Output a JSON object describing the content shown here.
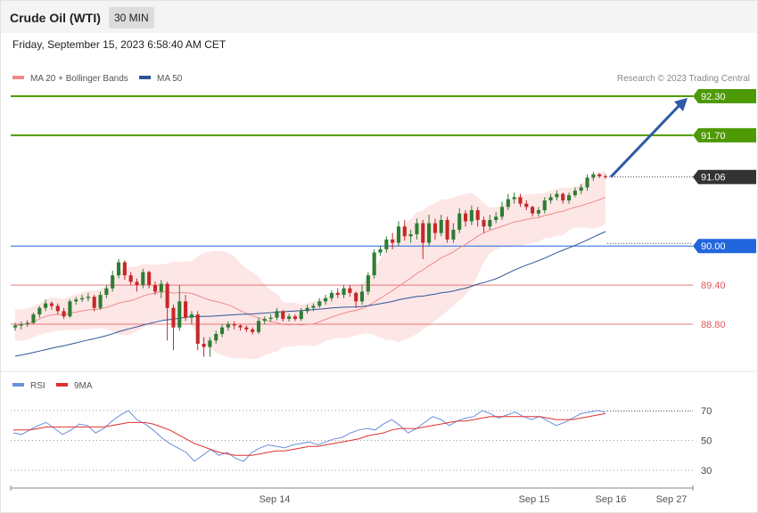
{
  "header": {
    "title": "Crude Oil (WTI)",
    "interval": "30 MIN"
  },
  "date_line": "Friday, September 15, 2023 6:58:40 AM CET",
  "legend": {
    "ma20": "MA 20 + Bollinger Bands",
    "ma50": "MA 50",
    "rsi": "RSI",
    "ma9": "9MA"
  },
  "copyright": "Research © 2023 Trading Central",
  "colors": {
    "green_level": "#4e9a06",
    "blue_level": "#2266dd",
    "red_level": "#e05a5a",
    "up": "#2e7d32",
    "down": "#c62828",
    "band": "#fde0e0",
    "ma50": "#2e5597",
    "rsi": "#6a8fdc",
    "ma9": "#e03030",
    "arrow": "#2e5aa8",
    "last": "#333333"
  },
  "chart_data": [
    {
      "type": "candlestick",
      "ylim": [
        87.8,
        92.5
      ],
      "x_ticks": [
        "Sep 14",
        "Sep 15",
        "Sep 16",
        "Sep 27"
      ],
      "levels": [
        {
          "value": 92.3,
          "label": "92.30",
          "kind": "resistance"
        },
        {
          "value": 91.7,
          "label": "91.70",
          "kind": "resistance"
        },
        {
          "value": 91.06,
          "label": "91.06",
          "kind": "last"
        },
        {
          "value": 90.0,
          "label": "90.00",
          "kind": "pivot"
        },
        {
          "value": 89.4,
          "label": "89.40",
          "kind": "support"
        },
        {
          "value": 88.8,
          "label": "88.80",
          "kind": "support"
        }
      ],
      "candles": [
        [
          88.75,
          88.78,
          88.7,
          88.82
        ],
        [
          88.78,
          88.8,
          88.72,
          88.84
        ],
        [
          88.8,
          88.82,
          88.76,
          88.86
        ],
        [
          88.82,
          88.95,
          88.8,
          88.98
        ],
        [
          88.95,
          89.05,
          88.9,
          89.08
        ],
        [
          89.05,
          89.12,
          89.0,
          89.18
        ],
        [
          89.12,
          89.08,
          89.02,
          89.15
        ],
        [
          89.08,
          89.0,
          88.95,
          89.12
        ],
        [
          89.0,
          88.92,
          88.88,
          89.05
        ],
        [
          88.92,
          89.15,
          88.9,
          89.18
        ],
        [
          89.15,
          89.18,
          89.1,
          89.22
        ],
        [
          89.18,
          89.2,
          89.14,
          89.25
        ],
        [
          89.2,
          89.22,
          89.15,
          89.28
        ],
        [
          89.22,
          89.05,
          89.0,
          89.25
        ],
        [
          89.05,
          89.25,
          89.02,
          89.3
        ],
        [
          89.25,
          89.35,
          89.2,
          89.4
        ],
        [
          89.35,
          89.55,
          89.3,
          89.62
        ],
        [
          89.55,
          89.75,
          89.5,
          89.8
        ],
        [
          89.75,
          89.55,
          89.48,
          89.78
        ],
        [
          89.55,
          89.45,
          89.4,
          89.6
        ],
        [
          89.45,
          89.4,
          89.3,
          89.5
        ],
        [
          89.4,
          89.6,
          89.35,
          89.65
        ],
        [
          89.6,
          89.4,
          89.35,
          89.62
        ],
        [
          89.4,
          89.3,
          89.25,
          89.45
        ],
        [
          89.3,
          89.42,
          89.2,
          89.48
        ],
        [
          89.42,
          89.05,
          88.55,
          89.45
        ],
        [
          89.05,
          88.75,
          88.4,
          89.1
        ],
        [
          88.75,
          89.15,
          88.7,
          89.4
        ],
        [
          89.15,
          88.9,
          88.85,
          89.25
        ],
        [
          88.9,
          88.95,
          88.8,
          89.0
        ],
        [
          88.95,
          88.5,
          88.4,
          89.0
        ],
        [
          88.5,
          88.45,
          88.3,
          88.6
        ],
        [
          88.45,
          88.55,
          88.3,
          88.6
        ],
        [
          88.55,
          88.65,
          88.5,
          88.7
        ],
        [
          88.65,
          88.75,
          88.6,
          88.8
        ],
        [
          88.75,
          88.8,
          88.7,
          88.84
        ],
        [
          88.8,
          88.78,
          88.72,
          88.84
        ],
        [
          88.78,
          88.75,
          88.7,
          88.8
        ],
        [
          88.75,
          88.72,
          88.68,
          88.78
        ],
        [
          88.72,
          88.68,
          88.64,
          88.75
        ],
        [
          88.68,
          88.85,
          88.65,
          88.9
        ],
        [
          88.85,
          88.88,
          88.8,
          88.92
        ],
        [
          88.88,
          88.9,
          88.84,
          88.95
        ],
        [
          88.9,
          89.0,
          88.86,
          89.05
        ],
        [
          89.0,
          88.88,
          88.84,
          89.02
        ],
        [
          88.88,
          88.92,
          88.84,
          88.96
        ],
        [
          88.92,
          88.88,
          88.85,
          88.95
        ],
        [
          88.88,
          89.0,
          88.85,
          89.05
        ],
        [
          89.0,
          89.05,
          88.96,
          89.1
        ],
        [
          89.05,
          89.08,
          89.0,
          89.12
        ],
        [
          89.08,
          89.15,
          89.05,
          89.2
        ],
        [
          89.15,
          89.2,
          89.1,
          89.25
        ],
        [
          89.2,
          89.28,
          89.15,
          89.32
        ],
        [
          89.28,
          89.25,
          89.2,
          89.35
        ],
        [
          89.25,
          89.35,
          89.2,
          89.4
        ],
        [
          89.35,
          89.28,
          89.22,
          89.4
        ],
        [
          89.28,
          89.15,
          89.05,
          89.3
        ],
        [
          89.15,
          89.3,
          89.1,
          89.4
        ],
        [
          89.3,
          89.55,
          89.25,
          89.6
        ],
        [
          89.55,
          89.9,
          89.5,
          89.95
        ],
        [
          89.9,
          89.95,
          89.85,
          90.0
        ],
        [
          89.95,
          90.1,
          89.9,
          90.15
        ],
        [
          90.1,
          90.05,
          89.95,
          90.2
        ],
        [
          90.05,
          90.3,
          90.0,
          90.38
        ],
        [
          90.3,
          90.15,
          90.08,
          90.4
        ],
        [
          90.15,
          90.18,
          90.05,
          90.25
        ],
        [
          90.18,
          90.35,
          90.1,
          90.42
        ],
        [
          90.35,
          90.05,
          89.8,
          90.4
        ],
        [
          90.05,
          90.35,
          90.0,
          90.48
        ],
        [
          90.35,
          90.2,
          90.1,
          90.42
        ],
        [
          90.2,
          90.4,
          90.15,
          90.48
        ],
        [
          90.4,
          90.1,
          90.05,
          90.45
        ],
        [
          90.1,
          90.25,
          90.05,
          90.35
        ],
        [
          90.25,
          90.5,
          90.2,
          90.58
        ],
        [
          90.5,
          90.38,
          90.3,
          90.55
        ],
        [
          90.38,
          90.55,
          90.32,
          90.62
        ],
        [
          90.55,
          90.4,
          90.3,
          90.6
        ],
        [
          90.4,
          90.3,
          90.2,
          90.45
        ],
        [
          90.3,
          90.4,
          90.25,
          90.48
        ],
        [
          90.4,
          90.45,
          90.35,
          90.52
        ],
        [
          90.45,
          90.6,
          90.4,
          90.68
        ],
        [
          90.6,
          90.72,
          90.55,
          90.8
        ],
        [
          90.72,
          90.75,
          90.65,
          90.82
        ],
        [
          90.75,
          90.65,
          90.6,
          90.8
        ],
        [
          90.65,
          90.6,
          90.55,
          90.7
        ],
        [
          90.6,
          90.5,
          90.45,
          90.62
        ],
        [
          90.5,
          90.55,
          90.45,
          90.6
        ],
        [
          90.55,
          90.7,
          90.5,
          90.75
        ],
        [
          90.7,
          90.75,
          90.65,
          90.8
        ],
        [
          90.75,
          90.8,
          90.7,
          90.85
        ],
        [
          90.8,
          90.7,
          90.65,
          90.82
        ],
        [
          90.7,
          90.78,
          90.65,
          90.82
        ],
        [
          90.78,
          90.85,
          90.75,
          90.9
        ],
        [
          90.85,
          90.9,
          90.8,
          90.95
        ],
        [
          90.9,
          91.05,
          90.85,
          91.1
        ],
        [
          91.05,
          91.1,
          91.0,
          91.14
        ],
        [
          91.1,
          91.07,
          91.04,
          91.12
        ],
        [
          91.07,
          91.06,
          91.03,
          91.1
        ]
      ],
      "projection": {
        "from": 91.06,
        "to": 92.3
      }
    },
    {
      "type": "line",
      "title": "RSI",
      "ylim": [
        25,
        80
      ],
      "y_ticks": [
        70,
        50,
        30
      ],
      "series": [
        {
          "name": "RSI",
          "values": [
            55,
            54,
            57,
            60,
            62,
            58,
            54,
            57,
            61,
            60,
            55,
            58,
            63,
            67,
            70,
            64,
            61,
            57,
            52,
            48,
            45,
            42,
            36,
            40,
            44,
            40,
            42,
            38,
            36,
            42,
            45,
            47,
            46,
            45,
            47,
            48,
            49,
            47,
            49,
            51,
            52,
            55,
            57,
            58,
            57,
            61,
            64,
            60,
            55,
            58,
            62,
            66,
            64,
            60,
            63,
            65,
            66,
            70,
            68,
            65,
            67,
            69,
            66,
            64,
            66,
            63,
            60,
            62,
            65,
            68,
            69,
            70,
            69
          ]
        },
        {
          "name": "9MA",
          "values": [
            57,
            57,
            57,
            58,
            59,
            59,
            59,
            59,
            59,
            59,
            59,
            59,
            60,
            61,
            62,
            62,
            62,
            61,
            59,
            57,
            54,
            51,
            48,
            46,
            44,
            42,
            41,
            40,
            40,
            40,
            41,
            42,
            43,
            43,
            44,
            45,
            46,
            46,
            47,
            48,
            49,
            50,
            51,
            53,
            54,
            55,
            57,
            58,
            58,
            58,
            59,
            60,
            61,
            62,
            63,
            63,
            64,
            65,
            66,
            66,
            66,
            66,
            66,
            66,
            66,
            65,
            64,
            64,
            64,
            65,
            66,
            67,
            68
          ]
        }
      ]
    }
  ]
}
